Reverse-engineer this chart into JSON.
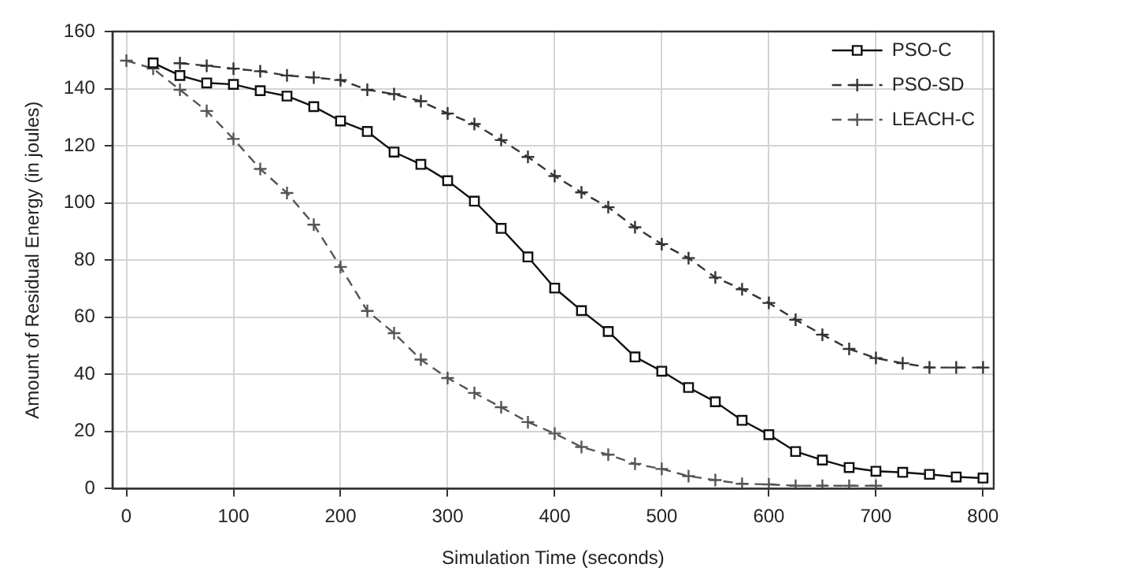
{
  "chart_data": {
    "type": "line",
    "xlabel": "Simulation Time (seconds)",
    "ylabel": "Amount of Residual Energy (in joules)",
    "x": [
      0,
      25,
      50,
      75,
      100,
      125,
      150,
      175,
      200,
      225,
      250,
      275,
      300,
      325,
      350,
      375,
      400,
      425,
      450,
      475,
      500,
      525,
      550,
      575,
      600,
      625,
      650,
      675,
      700,
      725,
      750,
      775,
      800
    ],
    "series": [
      {
        "name": "PSO-C",
        "color": "#111111",
        "marker": "square",
        "line_style": "solid",
        "values": [
          null,
          149,
          144.6,
          142,
          141.5,
          139.3,
          137.4,
          133.7,
          128.7,
          125,
          117.8,
          113.5,
          107.8,
          100.6,
          91.1,
          81.1,
          70.2,
          62.3,
          55,
          46.1,
          41.1,
          35.4,
          30.4,
          23.9,
          18.9,
          13,
          10,
          7.4,
          6.1,
          5.7,
          5,
          4.1,
          3.7
        ]
      },
      {
        "name": "PSO-SD",
        "color": "#333333",
        "marker": "cross",
        "line_style": "dashed",
        "values": [
          null,
          null,
          148.9,
          148,
          147,
          146.1,
          144.6,
          143.9,
          143,
          139.6,
          138.1,
          135.6,
          131.3,
          127.6,
          122,
          116.1,
          109.4,
          103.7,
          98.5,
          91.5,
          85.6,
          80.7,
          73.9,
          69.8,
          65,
          59.1,
          53.9,
          48.9,
          45.7,
          43.9,
          42.4,
          42.4,
          42.4
        ]
      },
      {
        "name": "LEACH-C",
        "color": "#555555",
        "marker": "cross",
        "line_style": "dashed",
        "values": [
          149.8,
          147,
          139.6,
          132.2,
          122.4,
          111.9,
          103.5,
          92.4,
          77.6,
          62.2,
          54.4,
          45.2,
          38.7,
          33.5,
          28.5,
          23.3,
          19.3,
          14.6,
          11.9,
          8.7,
          6.9,
          4.4,
          3,
          1.7,
          1.5,
          1,
          1,
          1,
          1,
          null,
          null,
          null,
          null
        ]
      }
    ],
    "xlim": [
      -13,
      810
    ],
    "xticks": [
      0,
      100,
      200,
      300,
      400,
      500,
      600,
      700,
      800
    ],
    "ylim": [
      0,
      160
    ],
    "yticks": [
      0,
      20,
      40,
      60,
      80,
      100,
      120,
      140,
      160
    ],
    "grid": true,
    "legend": "top right"
  }
}
